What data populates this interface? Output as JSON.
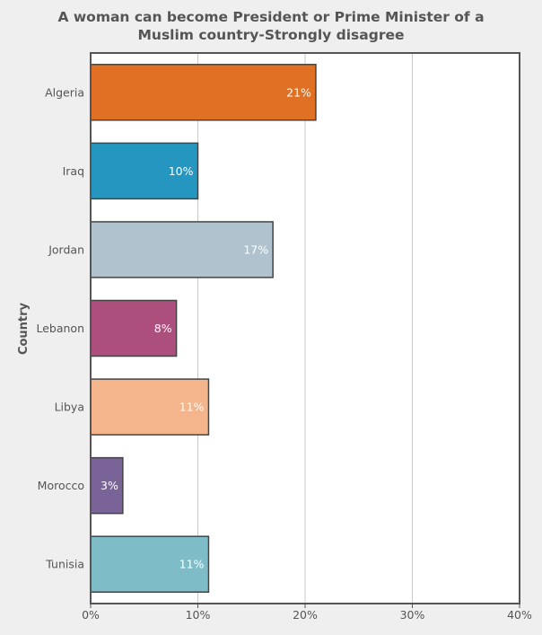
{
  "chart_data": {
    "type": "bar",
    "orientation": "horizontal",
    "title_lines": [
      "A woman can become President or Prime Minister of a",
      "Muslim country-Strongly disagree"
    ],
    "ylabel": "Country",
    "xlabel": "",
    "categories": [
      "Algeria",
      "Iraq",
      "Jordan",
      "Lebanon",
      "Libya",
      "Morocco",
      "Tunisia"
    ],
    "values": [
      21,
      10,
      17,
      8,
      11,
      3,
      11
    ],
    "value_labels": [
      "21%",
      "10%",
      "17%",
      "8%",
      "11%",
      "3%",
      "11%"
    ],
    "colors": [
      "#e07124",
      "#2596bf",
      "#b0c2ce",
      "#ad4f7c",
      "#f4b48c",
      "#7a6396",
      "#7ebcc8"
    ],
    "xlim": [
      0,
      40
    ],
    "x_ticks": [
      0,
      10,
      20,
      30,
      40
    ],
    "x_tick_labels": [
      "0%",
      "10%",
      "20%",
      "30%",
      "40%"
    ],
    "grid": "vertical",
    "legend": "none"
  }
}
